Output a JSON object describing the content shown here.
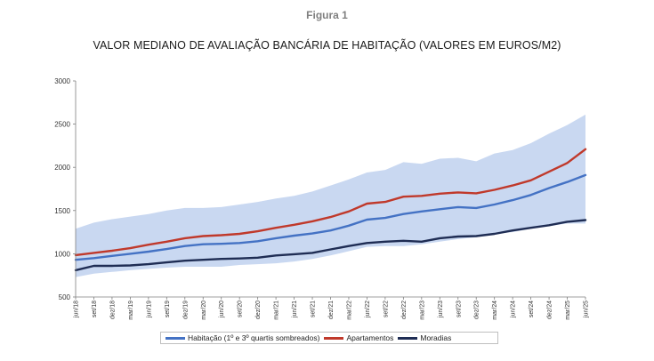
{
  "figure_label": "Figura 1",
  "chart_data": {
    "type": "line",
    "title": "VALOR MEDIANO DE AVALIAÇÃO BANCÁRIA DE HABITAÇÃO (VALORES EM EUROS/M2)",
    "xlabel": "",
    "ylabel": "",
    "ylim": [
      500,
      3000
    ],
    "yticks": [
      500,
      1000,
      1500,
      2000,
      2500,
      3000
    ],
    "grid": false,
    "legend_position": "bottom",
    "x_tick_labels": [
      "jun/18",
      "set/18",
      "dez/18",
      "mar/19",
      "jun/19",
      "set/19",
      "dez/19",
      "mar/20",
      "jun/20",
      "set/20",
      "dez/20",
      "mar/21",
      "jun/21",
      "set/21",
      "dez/21",
      "mar/22",
      "jun/22",
      "set/22",
      "dez/22",
      "mar/23",
      "jun/23",
      "set/23",
      "dez/23",
      "mar/24",
      "jun/24",
      "set/24",
      "dez/24",
      "mar/25",
      "jun/25"
    ],
    "band": {
      "label": "1º e 3º quartis",
      "color": "#c9d8f1",
      "lower": [
        730,
        770,
        790,
        810,
        825,
        840,
        850,
        850,
        850,
        870,
        880,
        890,
        910,
        940,
        980,
        1030,
        1080,
        1090,
        1090,
        1110,
        1140,
        1170,
        1190,
        1230,
        1250,
        1290,
        1320,
        1350,
        1350
      ],
      "upper": [
        1290,
        1360,
        1400,
        1430,
        1460,
        1500,
        1530,
        1530,
        1540,
        1570,
        1600,
        1640,
        1670,
        1720,
        1790,
        1860,
        1940,
        1970,
        2060,
        2040,
        2100,
        2110,
        2070,
        2160,
        2200,
        2280,
        2390,
        2490,
        2610
      ]
    },
    "series": [
      {
        "name": "Habitação (1º e 3º quartis sombreados)",
        "color": "#4472c4",
        "values": [
          930,
          950,
          975,
          1000,
          1025,
          1055,
          1090,
          1110,
          1115,
          1125,
          1145,
          1180,
          1210,
          1235,
          1270,
          1325,
          1395,
          1415,
          1460,
          1490,
          1515,
          1540,
          1530,
          1570,
          1620,
          1680,
          1760,
          1830,
          1910
        ]
      },
      {
        "name": "Apartamentos",
        "color": "#c0392b",
        "values": [
          985,
          1010,
          1035,
          1065,
          1105,
          1140,
          1180,
          1205,
          1215,
          1230,
          1260,
          1300,
          1335,
          1375,
          1425,
          1490,
          1580,
          1600,
          1660,
          1670,
          1695,
          1710,
          1700,
          1740,
          1790,
          1850,
          1950,
          2050,
          2210
        ]
      },
      {
        "name": "Moradias",
        "color": "#1f2d54",
        "values": [
          810,
          860,
          860,
          865,
          880,
          900,
          920,
          930,
          940,
          945,
          955,
          980,
          995,
          1010,
          1050,
          1090,
          1125,
          1140,
          1150,
          1140,
          1180,
          1200,
          1205,
          1230,
          1270,
          1300,
          1330,
          1370,
          1390
        ]
      }
    ]
  }
}
